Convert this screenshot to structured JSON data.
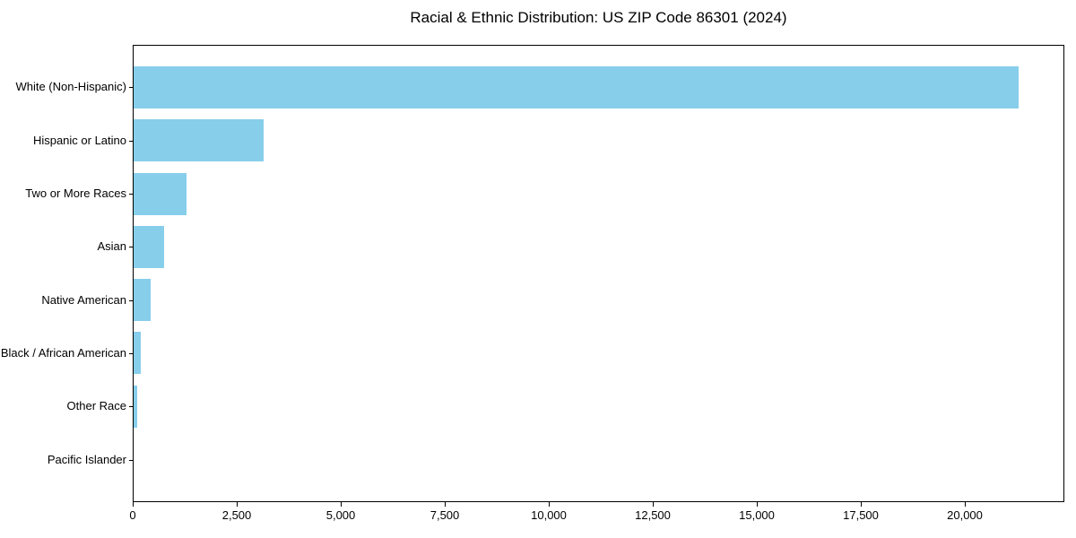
{
  "title": "Racial & Ethnic Distribution: US ZIP Code 86301 (2024)",
  "colors": {
    "bar": "#87CEEB",
    "axis": "#000000",
    "text": "#000000",
    "background": "#ffffff"
  },
  "chart_data": {
    "type": "bar",
    "orientation": "horizontal",
    "title": "Racial & Ethnic Distribution: US ZIP Code 86301 (2024)",
    "xlabel": "",
    "ylabel": "",
    "categories": [
      "White (Non-Hispanic)",
      "Hispanic or Latino",
      "Two or More Races",
      "Asian",
      "Native American",
      "Black / African American",
      "Other Race",
      "Pacific Islander"
    ],
    "values": [
      21270,
      3120,
      1270,
      730,
      410,
      170,
      85,
      10
    ],
    "bar_color": "#87CEEB",
    "xlim": [
      0,
      22340
    ],
    "xticks": [
      0,
      2500,
      5000,
      7500,
      10000,
      12500,
      15000,
      17500,
      20000
    ],
    "xtick_labels": [
      "0",
      "2,500",
      "5,000",
      "7,500",
      "10,000",
      "12,500",
      "15,000",
      "17,500",
      "20,000"
    ],
    "grid": false,
    "legend": null
  }
}
